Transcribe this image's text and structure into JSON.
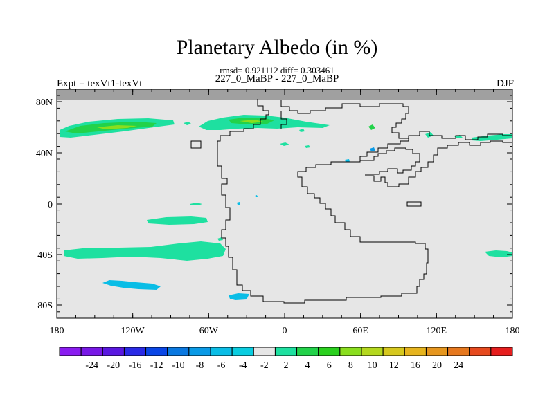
{
  "title": "Planetary Albedo (in %)",
  "stats": "rmsd= 0.921112 diff= 0.303461",
  "subtitle": "227_0_MaBP - 227_0_MaBP",
  "left_label": "Expt = texVt1-texVt",
  "right_label": "DJF",
  "map": {
    "projection": "cylindrical equidistant",
    "background_color": "#e6e6e6",
    "masked_color": "#a0a0a0",
    "lat_ticks": [
      "80N",
      "40N",
      "0",
      "40S",
      "80S"
    ],
    "lon_ticks": [
      "180",
      "120W",
      "60W",
      "0",
      "60E",
      "120E",
      "180"
    ]
  },
  "colorbar": {
    "colors": [
      "#8a1cf0",
      "#7818e6",
      "#5a18e0",
      "#2a2ae6",
      "#0a46e6",
      "#0a78e0",
      "#0a9ae6",
      "#0abde6",
      "#0acde0",
      "#e6e6e6",
      "#1ee0a0",
      "#22d24a",
      "#2ad01e",
      "#8ade1e",
      "#b4d81e",
      "#d6c81e",
      "#e6b41e",
      "#e6961e",
      "#e6781e",
      "#e64a1e",
      "#e61e1e"
    ],
    "labels": [
      "-24",
      "-20",
      "-16",
      "-12",
      "-10",
      "-8",
      "-6",
      "-4",
      "-2",
      "2",
      "4",
      "6",
      "8",
      "10",
      "12",
      "16",
      "20",
      "24"
    ]
  }
}
